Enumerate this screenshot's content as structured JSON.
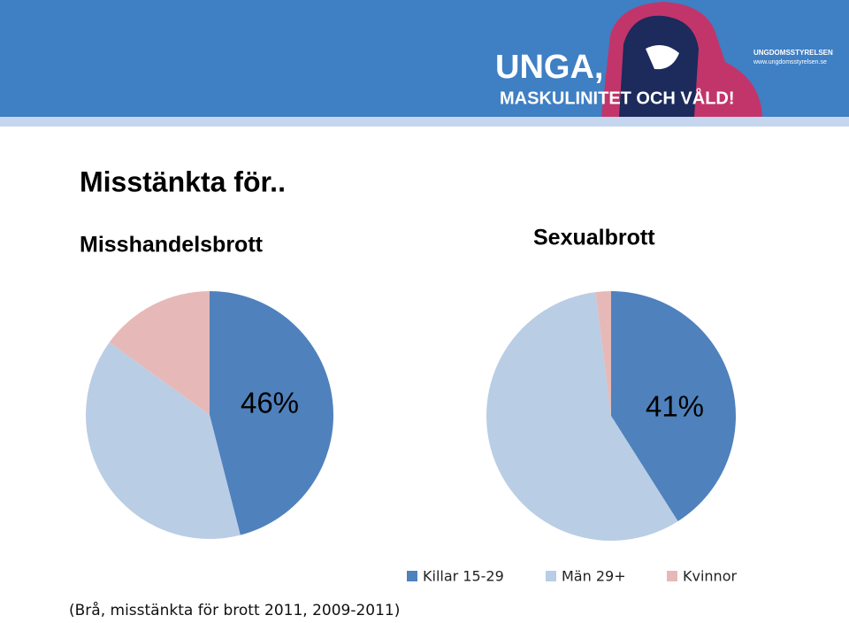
{
  "header": {
    "logo_title": "UNGA,",
    "logo_subtitle": "MASKULINITET OCH VÅLD!",
    "org": "UNGDOMSSTYRELSEN",
    "url": "www.ungdomsstyrelsen.se"
  },
  "title": "Misstänkta för..",
  "footnote": "(Brå, misstänkta för brott 2011, 2009-2011)",
  "chart_data": [
    {
      "type": "pie",
      "title": "Misshandelsbrott",
      "categories": [
        "Killar 15-29",
        "Män 29+",
        "Kvinnor"
      ],
      "values": [
        46,
        39,
        15
      ],
      "value_labels": [
        "46%",
        null,
        null
      ],
      "colors": [
        "#4f81bd",
        "#b9cde5",
        "#e6b9b8"
      ]
    },
    {
      "type": "pie",
      "title": "Sexualbrott",
      "categories": [
        "Killar 15-29",
        "Män 29+",
        "Kvinnor"
      ],
      "values": [
        41,
        57,
        2
      ],
      "value_labels": [
        "41%",
        null,
        null
      ],
      "colors": [
        "#4f81bd",
        "#b9cde5",
        "#e6b9b8"
      ]
    }
  ]
}
